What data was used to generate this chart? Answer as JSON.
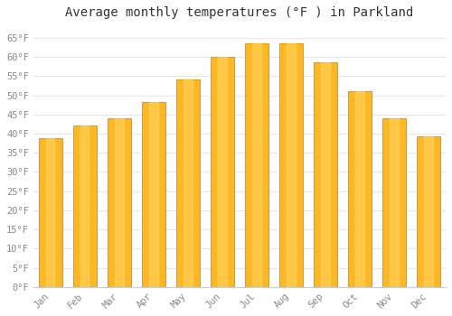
{
  "months": [
    "Jan",
    "Feb",
    "Mar",
    "Apr",
    "May",
    "Jun",
    "Jul",
    "Aug",
    "Sep",
    "Oct",
    "Nov",
    "Dec"
  ],
  "values": [
    38.8,
    42.1,
    44.1,
    48.2,
    54.1,
    60.1,
    63.5,
    63.5,
    58.6,
    51.1,
    44.1,
    39.2
  ],
  "bar_color_main": "#FDB827",
  "bar_color_edge": "#E8A000",
  "background_color": "#FFFFFF",
  "plot_bg_color": "#FFFFFF",
  "grid_color": "#E8E8E8",
  "title": "Average monthly temperatures (°F ) in Parkland",
  "title_fontsize": 10,
  "title_color": "#333333",
  "tick_color": "#888888",
  "tick_fontsize": 7.5,
  "ylim": [
    0,
    68
  ],
  "yticks": [
    0,
    5,
    10,
    15,
    20,
    25,
    30,
    35,
    40,
    45,
    50,
    55,
    60,
    65
  ],
  "ytick_labels": [
    "0°F",
    "5°F",
    "10°F",
    "15°F",
    "20°F",
    "25°F",
    "30°F",
    "35°F",
    "40°F",
    "45°F",
    "50°F",
    "55°F",
    "60°F",
    "65°F"
  ]
}
